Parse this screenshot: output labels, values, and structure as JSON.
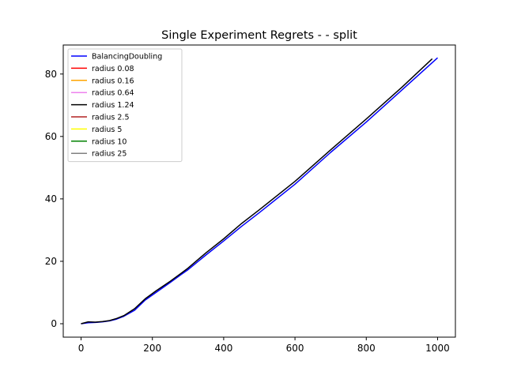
{
  "chart_data": {
    "type": "line",
    "title": "Single Experiment Regrets -  - split",
    "xlabel": "",
    "ylabel": "",
    "xlim": [
      -50,
      1050
    ],
    "ylim": [
      -4.3,
      89.3
    ],
    "xticks": [
      0,
      200,
      400,
      600,
      800,
      1000
    ],
    "yticks": [
      0,
      20,
      40,
      60,
      80
    ],
    "grid": false,
    "legend_position": "top-left",
    "series": [
      {
        "name": "BalancingDoubling",
        "color": "#0000ff",
        "x": [
          0,
          20,
          40,
          60,
          80,
          100,
          120,
          150,
          180,
          210,
          250,
          280,
          300,
          350,
          400,
          450,
          500,
          600,
          700,
          800,
          900,
          1000
        ],
        "y": [
          0,
          0.3,
          0.4,
          0.6,
          0.9,
          1.5,
          2.4,
          4.3,
          7.6,
          10.0,
          13.2,
          15.7,
          17.3,
          22.0,
          26.5,
          31.2,
          35.6,
          44.7,
          54.9,
          64.6,
          74.9,
          85.2
        ]
      },
      {
        "name": "radius 0.08",
        "color": "#ff0000",
        "x": [],
        "y": []
      },
      {
        "name": "radius 0.16",
        "color": "#ffa500",
        "x": [],
        "y": []
      },
      {
        "name": "radius 0.64",
        "color": "#ee82ee",
        "x": [],
        "y": []
      },
      {
        "name": "radius 1.24",
        "color": "#000000",
        "x": [
          0,
          20,
          40,
          60,
          80,
          100,
          120,
          150,
          180,
          210,
          250,
          280,
          300,
          350,
          400,
          450,
          500,
          600,
          700,
          800,
          900,
          985
        ],
        "y": [
          0,
          0.6,
          0.5,
          0.7,
          1.0,
          1.7,
          2.6,
          4.8,
          8.0,
          10.5,
          13.6,
          16.1,
          17.8,
          22.7,
          27.2,
          32.1,
          36.5,
          45.6,
          55.7,
          65.6,
          75.8,
          84.9
        ]
      },
      {
        "name": "radius 2.5",
        "color": "#b22222",
        "x": [],
        "y": []
      },
      {
        "name": "radius 5",
        "color": "#ffff00",
        "x": [],
        "y": []
      },
      {
        "name": "radius 10",
        "color": "#008000",
        "x": [],
        "y": []
      },
      {
        "name": "radius 25",
        "color": "#808080",
        "x": [],
        "y": []
      }
    ]
  }
}
